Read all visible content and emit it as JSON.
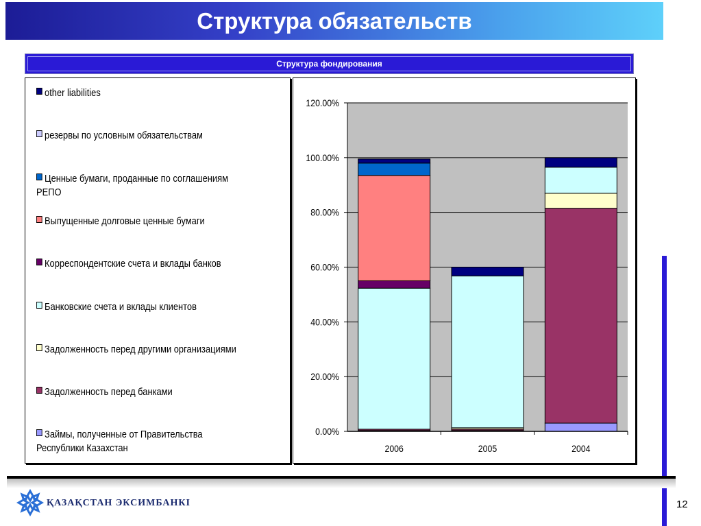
{
  "slide": {
    "title": "Структура обязательств",
    "subtitle": "Структура фондирования",
    "page_number": "12",
    "logo_text": "ҚАЗАҚСТАН ЭКСИМБАНКІ"
  },
  "colors": {
    "title_gradient_start": "#1c1c96",
    "title_gradient_end": "#5ed0fa",
    "subtitle_bar": "#2a1ad6",
    "plot_background": "#c0c0c0"
  },
  "chart_data": {
    "type": "bar",
    "stacked": true,
    "categories": [
      "2006",
      "2005",
      "2004"
    ],
    "y_ticks": [
      "0.00%",
      "20.00%",
      "40.00%",
      "60.00%",
      "80.00%",
      "100.00%",
      "120.00%"
    ],
    "ylim": [
      0,
      120
    ],
    "grid": true,
    "legend_position": "left",
    "series": [
      {
        "name": "Займы, полученные от Правительства Республики Казахстан",
        "color": "#9999ff",
        "values": [
          0.3,
          0.3,
          3.0
        ]
      },
      {
        "name": "Задолженность перед банками",
        "color": "#993366",
        "values": [
          0.5,
          0.5,
          78.5
        ]
      },
      {
        "name": "Задолженность перед другими организациями",
        "color": "#ffffcc",
        "values": [
          0,
          0.5,
          5.5
        ]
      },
      {
        "name": "Банковские счета и вклады клиентов",
        "color": "#ccffff",
        "values": [
          51.5,
          55.5,
          9.5
        ]
      },
      {
        "name": "Корреспондентские счета и вклады банков",
        "color": "#660066",
        "values": [
          2.7,
          0,
          0
        ]
      },
      {
        "name": "Выпущенные долговые ценные бумаги",
        "color": "#ff8080",
        "values": [
          38.5,
          0,
          0
        ]
      },
      {
        "name": "Ценные бумаги, проданные по соглашениям РЕПО",
        "color": "#0066cc",
        "values": [
          4.5,
          0,
          0
        ]
      },
      {
        "name": "резервы по условным обязательствам",
        "color": "#ccccff",
        "values": [
          0,
          0,
          0
        ]
      },
      {
        "name": "other liabilities",
        "color": "#000080",
        "values": [
          1.5,
          3.2,
          3.5
        ]
      }
    ]
  }
}
